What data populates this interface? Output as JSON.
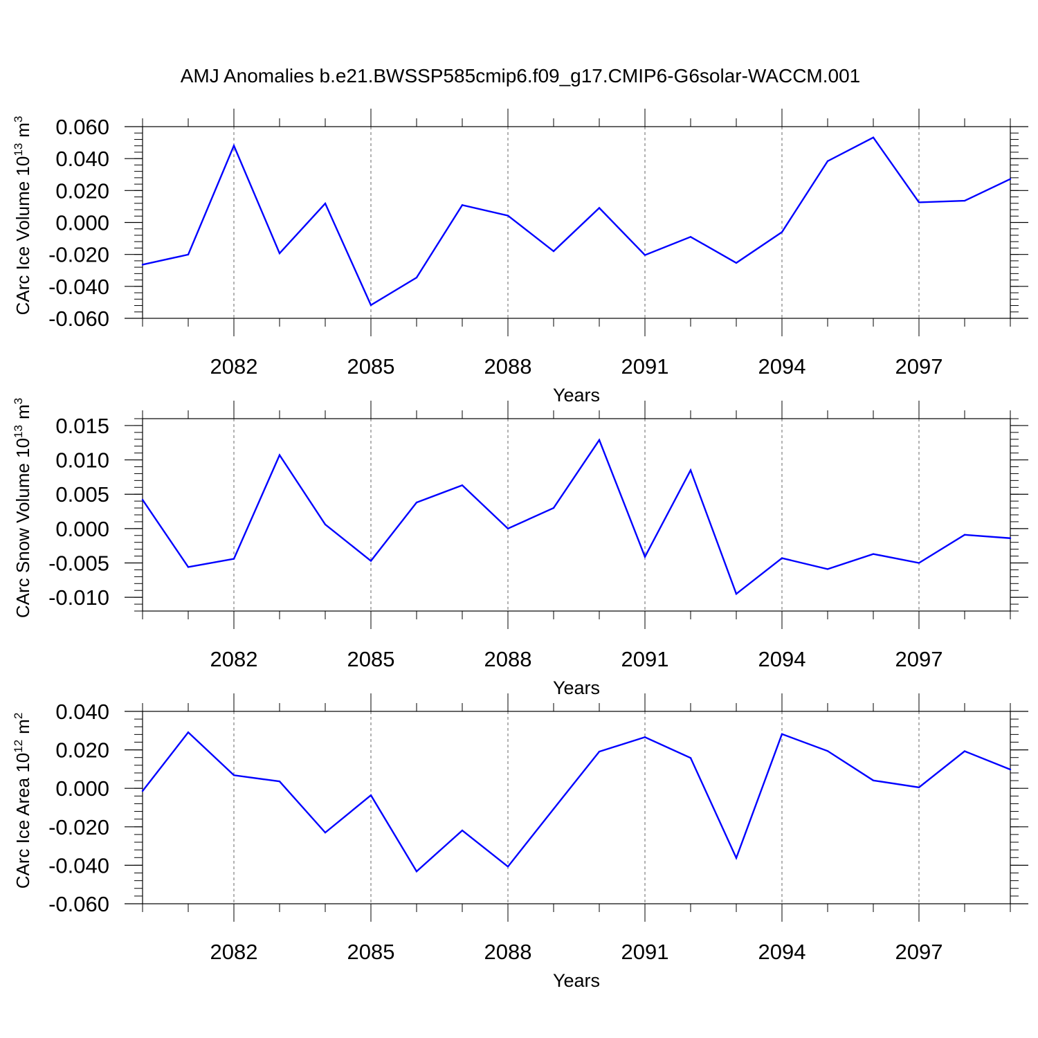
{
  "title": "AMJ Anomalies b.e21.BWSSP585cmip6.f09_g17.CMIP6-G6solar-WACCM.001",
  "chart_data": [
    {
      "type": "line",
      "ylabel": "CArc Ice Volume 10",
      "ylabel_exp": "13",
      "ylabel_unit": "m",
      "ylabel_unit_exp": "3",
      "xlabel": "Years",
      "x": [
        2080,
        2081,
        2082,
        2083,
        2084,
        2085,
        2086,
        2087,
        2088,
        2089,
        2090,
        2091,
        2092,
        2093,
        2094,
        2095,
        2096,
        2097,
        2098,
        2099
      ],
      "xlim": [
        2080,
        2099
      ],
      "xticks": [
        "2082",
        "2085",
        "2088",
        "2091",
        "2094",
        "2097"
      ],
      "ylim": [
        -0.06,
        0.06
      ],
      "yticks": [
        "0.060",
        "0.040",
        "0.020",
        "0.000",
        "-0.020",
        "-0.040",
        "-0.060"
      ],
      "series": [
        {
          "color": "#0000ff",
          "values": [
            -0.0264,
            -0.0201,
            0.0481,
            -0.0193,
            0.0119,
            -0.0517,
            -0.0345,
            0.0109,
            0.0043,
            -0.018,
            0.0091,
            -0.0204,
            -0.009,
            -0.0253,
            -0.006,
            0.0384,
            0.0532,
            0.0126,
            0.0136,
            0.0272
          ]
        }
      ]
    },
    {
      "type": "line",
      "ylabel": "CArc Snow Volume 10",
      "ylabel_exp": "13",
      "ylabel_unit": "m",
      "ylabel_unit_exp": "3",
      "xlabel": "Years",
      "x": [
        2080,
        2081,
        2082,
        2083,
        2084,
        2085,
        2086,
        2087,
        2088,
        2089,
        2090,
        2091,
        2092,
        2093,
        2094,
        2095,
        2096,
        2097,
        2098,
        2099
      ],
      "xlim": [
        2080,
        2099
      ],
      "xticks": [
        "2082",
        "2085",
        "2088",
        "2091",
        "2094",
        "2097"
      ],
      "ylim": [
        -0.012,
        0.016
      ],
      "yticks": [
        "0.015",
        "0.010",
        "0.005",
        "0.000",
        "-0.005",
        "-0.010"
      ],
      "series": [
        {
          "color": "#0000ff",
          "values": [
            0.0042,
            -0.0056,
            -0.0044,
            0.0107,
            0.0006,
            -0.0047,
            0.0038,
            0.0063,
            0.0,
            0.003,
            0.0129,
            -0.0041,
            0.0085,
            -0.0095,
            -0.0043,
            -0.0059,
            -0.0037,
            -0.005,
            -0.0009,
            -0.0014
          ]
        }
      ]
    },
    {
      "type": "line",
      "ylabel": "CArc Ice Area 10",
      "ylabel_exp": "12",
      "ylabel_unit": "m",
      "ylabel_unit_exp": "2",
      "xlabel": "Years",
      "x": [
        2080,
        2081,
        2082,
        2083,
        2084,
        2085,
        2086,
        2087,
        2088,
        2089,
        2090,
        2091,
        2092,
        2093,
        2094,
        2095,
        2096,
        2097,
        2098,
        2099
      ],
      "xlim": [
        2080,
        2099
      ],
      "xticks": [
        "2082",
        "2085",
        "2088",
        "2091",
        "2094",
        "2097"
      ],
      "ylim": [
        -0.06,
        0.04
      ],
      "yticks": [
        "0.040",
        "0.020",
        "0.000",
        "-0.020",
        "-0.040",
        "-0.060"
      ],
      "series": [
        {
          "color": "#0000ff",
          "values": [
            -0.0014,
            0.0291,
            0.0068,
            0.0036,
            -0.023,
            -0.0036,
            -0.0432,
            -0.0219,
            -0.0407,
            -0.0107,
            0.0191,
            0.0266,
            0.0158,
            -0.0362,
            0.0282,
            0.0194,
            0.0041,
            0.0005,
            0.0193,
            0.0098
          ]
        }
      ]
    }
  ]
}
